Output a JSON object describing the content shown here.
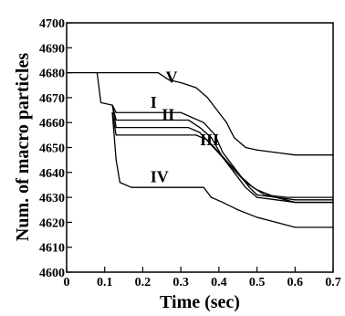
{
  "chart_data": {
    "type": "line",
    "xlabel": "Time (sec)",
    "ylabel": "Num. of macro particles",
    "xlim": [
      0,
      0.7
    ],
    "ylim": [
      4600,
      4700
    ],
    "x_ticks": [
      "0",
      "0.1",
      "0.2",
      "0.3",
      "0.4",
      "0.5",
      "0.6",
      "0.7"
    ],
    "y_ticks": [
      "4600",
      "4610",
      "4620",
      "4630",
      "4640",
      "4650",
      "4660",
      "4670",
      "4680",
      "4690",
      "4700"
    ],
    "grid": false,
    "series": [
      {
        "name": "V",
        "label_at": [
          0.26,
          4676
        ],
        "points": [
          [
            0.0,
            4680
          ],
          [
            0.24,
            4680
          ],
          [
            0.27,
            4677
          ],
          [
            0.3,
            4676
          ],
          [
            0.34,
            4674
          ],
          [
            0.37,
            4670
          ],
          [
            0.4,
            4664
          ],
          [
            0.42,
            4660
          ],
          [
            0.44,
            4654
          ],
          [
            0.47,
            4650
          ],
          [
            0.5,
            4649
          ],
          [
            0.55,
            4648
          ],
          [
            0.6,
            4647
          ],
          [
            0.7,
            4647
          ]
        ]
      },
      {
        "name": "I",
        "label_at": [
          0.22,
          4666
        ],
        "points": [
          [
            0.08,
            4680
          ],
          [
            0.09,
            4668
          ],
          [
            0.12,
            4667
          ],
          [
            0.13,
            4664
          ],
          [
            0.3,
            4664
          ],
          [
            0.33,
            4662
          ],
          [
            0.36,
            4660
          ],
          [
            0.39,
            4655
          ],
          [
            0.41,
            4648
          ],
          [
            0.44,
            4642
          ],
          [
            0.46,
            4638
          ],
          [
            0.48,
            4634
          ],
          [
            0.5,
            4631
          ],
          [
            0.55,
            4630
          ],
          [
            0.6,
            4629
          ],
          [
            0.7,
            4629
          ]
        ]
      },
      {
        "name": "II",
        "label_at": [
          0.25,
          4661
        ],
        "points": [
          [
            0.12,
            4667
          ],
          [
            0.13,
            4661
          ],
          [
            0.32,
            4661
          ],
          [
            0.35,
            4658
          ],
          [
            0.38,
            4654
          ],
          [
            0.41,
            4646
          ],
          [
            0.44,
            4640
          ],
          [
            0.47,
            4634
          ],
          [
            0.5,
            4630
          ],
          [
            0.55,
            4629
          ],
          [
            0.6,
            4628
          ],
          [
            0.7,
            4628
          ]
        ]
      },
      {
        "name": "III",
        "label_at": [
          0.35,
          4651
        ],
        "points": [
          [
            0.12,
            4667
          ],
          [
            0.13,
            4658
          ],
          [
            0.32,
            4658
          ],
          [
            0.35,
            4656
          ],
          [
            0.38,
            4651
          ],
          [
            0.41,
            4646
          ],
          [
            0.44,
            4641
          ],
          [
            0.47,
            4636
          ],
          [
            0.5,
            4633
          ],
          [
            0.55,
            4630
          ],
          [
            0.6,
            4628
          ],
          [
            0.7,
            4628
          ]
        ]
      },
      {
        "name": "IV",
        "label_at": [
          0.22,
          4636
        ],
        "points": [
          [
            0.12,
            4664
          ],
          [
            0.13,
            4645
          ],
          [
            0.14,
            4636
          ],
          [
            0.17,
            4634
          ],
          [
            0.36,
            4634
          ],
          [
            0.38,
            4630
          ],
          [
            0.41,
            4628
          ],
          [
            0.45,
            4625
          ],
          [
            0.5,
            4622
          ],
          [
            0.55,
            4620
          ],
          [
            0.6,
            4618
          ],
          [
            0.7,
            4618
          ]
        ]
      },
      {
        "name": "",
        "points": [
          [
            0.12,
            4664
          ],
          [
            0.13,
            4655
          ],
          [
            0.34,
            4655
          ],
          [
            0.37,
            4653
          ],
          [
            0.4,
            4648
          ],
          [
            0.43,
            4643
          ],
          [
            0.46,
            4638
          ],
          [
            0.49,
            4634
          ],
          [
            0.52,
            4631
          ],
          [
            0.58,
            4630
          ],
          [
            0.7,
            4630
          ]
        ]
      }
    ]
  }
}
